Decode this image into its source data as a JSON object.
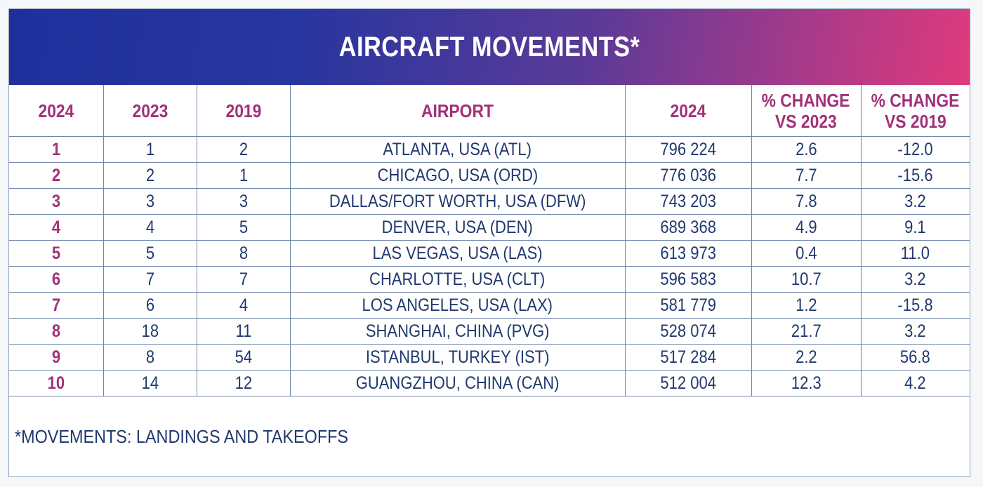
{
  "chart_data": {
    "type": "table",
    "title": "AIRCRAFT MOVEMENTS*",
    "columns": [
      "2024",
      "2023",
      "2019",
      "AIRPORT",
      "2024",
      "% CHANGE VS 2023",
      "% CHANGE VS 2019"
    ],
    "header": {
      "rank_2024": "2024",
      "rank_2023": "2023",
      "rank_2019": "2019",
      "airport": "AIRPORT",
      "movements_2024": "2024",
      "change_2023_line1": "% CHANGE",
      "change_2023_line2": "VS 2023",
      "change_2019_line1": "% CHANGE",
      "change_2019_line2": "VS 2019"
    },
    "rows": [
      {
        "rank_2024": "1",
        "rank_2023": "1",
        "rank_2019": "2",
        "airport": "ATLANTA, USA (ATL)",
        "movements_2024": "796 224",
        "change_2023": "2.6",
        "change_2019": "-12.0"
      },
      {
        "rank_2024": "2",
        "rank_2023": "2",
        "rank_2019": "1",
        "airport": "CHICAGO, USA (ORD)",
        "movements_2024": "776 036",
        "change_2023": "7.7",
        "change_2019": "-15.6"
      },
      {
        "rank_2024": "3",
        "rank_2023": "3",
        "rank_2019": "3",
        "airport": "DALLAS/FORT WORTH, USA (DFW)",
        "movements_2024": "743 203",
        "change_2023": "7.8",
        "change_2019": "3.2"
      },
      {
        "rank_2024": "4",
        "rank_2023": "4",
        "rank_2019": "5",
        "airport": "DENVER, USA (DEN)",
        "movements_2024": "689 368",
        "change_2023": "4.9",
        "change_2019": "9.1"
      },
      {
        "rank_2024": "5",
        "rank_2023": "5",
        "rank_2019": "8",
        "airport": "LAS VEGAS, USA (LAS)",
        "movements_2024": "613 973",
        "change_2023": "0.4",
        "change_2019": "11.0"
      },
      {
        "rank_2024": "6",
        "rank_2023": "7",
        "rank_2019": "7",
        "airport": "CHARLOTTE, USA (CLT)",
        "movements_2024": "596 583",
        "change_2023": "10.7",
        "change_2019": "3.2"
      },
      {
        "rank_2024": "7",
        "rank_2023": "6",
        "rank_2019": "4",
        "airport": "LOS ANGELES, USA (LAX)",
        "movements_2024": "581 779",
        "change_2023": "1.2",
        "change_2019": "-15.8"
      },
      {
        "rank_2024": "8",
        "rank_2023": "18",
        "rank_2019": "11",
        "airport": "SHANGHAI, CHINA (PVG)",
        "movements_2024": "528 074",
        "change_2023": "21.7",
        "change_2019": "3.2"
      },
      {
        "rank_2024": "9",
        "rank_2023": "8",
        "rank_2019": "54",
        "airport": "ISTANBUL, TURKEY (IST)",
        "movements_2024": "517 284",
        "change_2023": "2.2",
        "change_2019": "56.8"
      },
      {
        "rank_2024": "10",
        "rank_2023": "14",
        "rank_2019": "12",
        "airport": "GUANGZHOU, CHINA (CAN)",
        "movements_2024": "512 004",
        "change_2023": "12.3",
        "change_2019": "4.2"
      }
    ],
    "footnote": "*MOVEMENTS: LANDINGS AND TAKEOFFS",
    "colors": {
      "banner_start": "#1e2f9c",
      "banner_end": "#e03a7c",
      "header_text": "#a33078",
      "body_text": "#203a6e",
      "grid_line": "#6f86ab"
    }
  }
}
